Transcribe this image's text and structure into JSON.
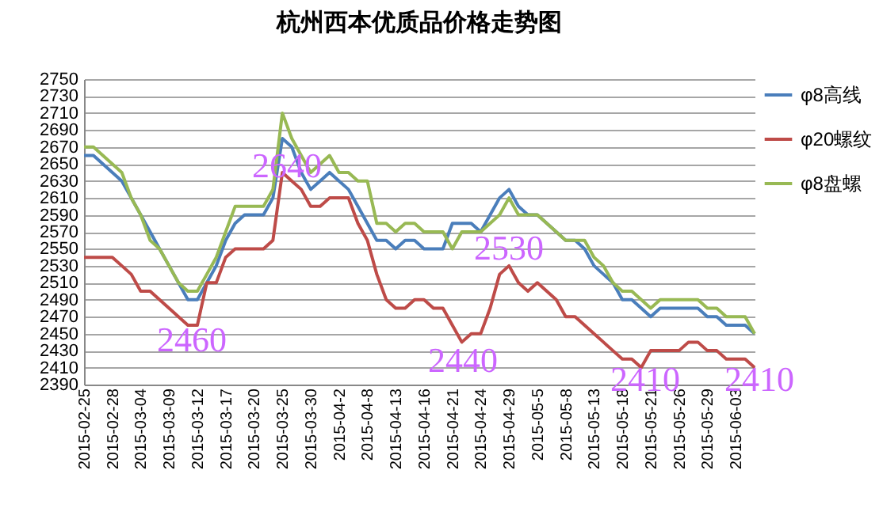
{
  "chart_data": {
    "type": "line",
    "title": "杭州西本优质品价格走势图",
    "categories": [
      "2015-02-25",
      null,
      null,
      "2015-02-28",
      null,
      null,
      "2015-03-04",
      null,
      null,
      "2015-03-09",
      null,
      null,
      "2015-03-12",
      null,
      null,
      "2015-03-17",
      null,
      null,
      "2015-03-20",
      null,
      null,
      "2015-03-25",
      null,
      null,
      "2015-03-30",
      null,
      null,
      "2015-04-2",
      null,
      null,
      "2015-04-8",
      null,
      null,
      "2015-04-13",
      null,
      null,
      "2015-04-16",
      null,
      null,
      "2015-04-21",
      null,
      null,
      "2015-04-24",
      null,
      null,
      "2015-04-29",
      null,
      null,
      "2015-05-5",
      null,
      null,
      "2015-05-8",
      null,
      null,
      "2015-05-13",
      null,
      null,
      "2015-05-18",
      null,
      null,
      "2015-05-21",
      null,
      null,
      "2015-05-26",
      null,
      null,
      "2015-05-29",
      null,
      null,
      "2015-06-03",
      null,
      null
    ],
    "series": [
      {
        "name": "φ8高线",
        "color": "#4a7ebb",
        "values": [
          2660,
          2660,
          2650,
          2640,
          2630,
          2610,
          2590,
          2570,
          2550,
          2530,
          2510,
          2490,
          2490,
          2510,
          2530,
          2560,
          2580,
          2590,
          2590,
          2590,
          2610,
          2680,
          2670,
          2640,
          2620,
          2630,
          2640,
          2630,
          2620,
          2600,
          2580,
          2560,
          2560,
          2550,
          2560,
          2560,
          2550,
          2550,
          2550,
          2580,
          2580,
          2580,
          2570,
          2590,
          2610,
          2620,
          2600,
          2590,
          2590,
          2580,
          2570,
          2560,
          2560,
          2550,
          2530,
          2520,
          2510,
          2490,
          2490,
          2480,
          2470,
          2480,
          2480,
          2480,
          2480,
          2480,
          2470,
          2470,
          2460,
          2460,
          2460,
          2450
        ]
      },
      {
        "name": "φ20螺纹",
        "color": "#be4b48",
        "values": [
          2540,
          2540,
          2540,
          2540,
          2530,
          2520,
          2500,
          2500,
          2490,
          2480,
          2470,
          2460,
          2460,
          2510,
          2510,
          2540,
          2550,
          2550,
          2550,
          2550,
          2560,
          2640,
          2630,
          2620,
          2600,
          2600,
          2610,
          2610,
          2610,
          2580,
          2560,
          2520,
          2490,
          2480,
          2480,
          2490,
          2490,
          2480,
          2480,
          2460,
          2440,
          2450,
          2450,
          2480,
          2520,
          2530,
          2510,
          2500,
          2510,
          2500,
          2490,
          2470,
          2470,
          2460,
          2450,
          2440,
          2430,
          2420,
          2420,
          2410,
          2430,
          2430,
          2430,
          2430,
          2440,
          2440,
          2430,
          2430,
          2420,
          2420,
          2420,
          2410
        ]
      },
      {
        "name": "φ8盘螺",
        "color": "#98b954",
        "values": [
          2670,
          2670,
          2660,
          2650,
          2640,
          2610,
          2590,
          2560,
          2550,
          2530,
          2510,
          2500,
          2500,
          2520,
          2540,
          2570,
          2600,
          2600,
          2600,
          2600,
          2620,
          2710,
          2680,
          2660,
          2640,
          2650,
          2660,
          2640,
          2640,
          2630,
          2630,
          2580,
          2580,
          2570,
          2580,
          2580,
          2570,
          2570,
          2570,
          2550,
          2570,
          2570,
          2570,
          2580,
          2590,
          2610,
          2590,
          2590,
          2590,
          2580,
          2570,
          2560,
          2560,
          2560,
          2540,
          2530,
          2510,
          2500,
          2500,
          2490,
          2480,
          2490,
          2490,
          2490,
          2490,
          2490,
          2480,
          2480,
          2470,
          2470,
          2470,
          2450
        ]
      }
    ],
    "ylim": [
      2390,
      2750
    ],
    "yticks": [
      2390,
      2410,
      2430,
      2450,
      2470,
      2490,
      2510,
      2530,
      2550,
      2570,
      2590,
      2610,
      2630,
      2650,
      2670,
      2690,
      2710,
      2730,
      2750
    ],
    "grid": "y",
    "legend": "right",
    "annotations": [
      "2640",
      "2460",
      "2440",
      "2530",
      "2410",
      "2410"
    ]
  }
}
